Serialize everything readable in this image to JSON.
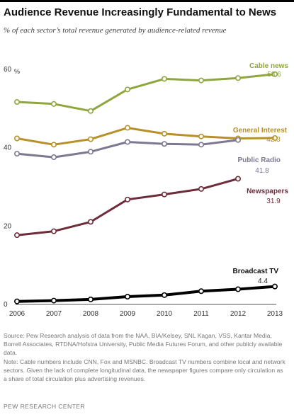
{
  "header": {
    "title": "Audience Revenue Increasingly Fundamental to News",
    "subtitle": "% of each sector’s total revenue generated by audience-related revenue"
  },
  "notes": {
    "source": "Source: Pew Research analysis of data from the NAA, BIA/Kelsey, SNL Kagan, VSS, Kantar Media, Borrell Associates, RTDNA/Hofstra University, Public Media Futures Forum, and other publicly available data.",
    "note": "Note: Cable numbers include CNN, Fox and MSNBC. Broadcast TV numbers combine local and network sectors. Given the lack of complete longitudinal data, the newspaper figures compare only circulation as a share of total circulation plus advertising revenues."
  },
  "footer": {
    "org": "PEW RESEARCH CENTER"
  },
  "chart_data": {
    "type": "line",
    "x": [
      2006,
      2007,
      2008,
      2009,
      2010,
      2011,
      2012,
      2013
    ],
    "ylim": [
      0,
      60
    ],
    "yticks": [
      0,
      20,
      40,
      60
    ],
    "yunit": "%",
    "grid": false,
    "series": [
      {
        "name": "Cable news",
        "color": "#8fa63f",
        "values": [
          51.5,
          51.0,
          49.2,
          54.7,
          57.4,
          57.0,
          57.6,
          58.6
        ],
        "end_label": "58.6"
      },
      {
        "name": "General Interest",
        "color": "#b8902a",
        "values": [
          42.2,
          40.6,
          42.0,
          44.9,
          43.4,
          42.7,
          42.2,
          42.3
        ],
        "end_label": "42.3"
      },
      {
        "name": "Public Radio",
        "color": "#7d7891",
        "values": [
          38.3,
          37.4,
          38.8,
          41.3,
          40.8,
          40.6,
          41.8,
          null
        ],
        "end_label": "41.8"
      },
      {
        "name": "Newspapers",
        "color": "#6e2c3a",
        "values": [
          17.5,
          18.5,
          20.9,
          26.6,
          27.9,
          29.3,
          31.9,
          null
        ],
        "end_label": "31.9"
      },
      {
        "name": "Broadcast TV",
        "color": "#000000",
        "values": [
          0.6,
          0.8,
          1.1,
          1.8,
          2.2,
          3.2,
          3.7,
          4.4
        ],
        "end_label": "4.4"
      }
    ]
  }
}
